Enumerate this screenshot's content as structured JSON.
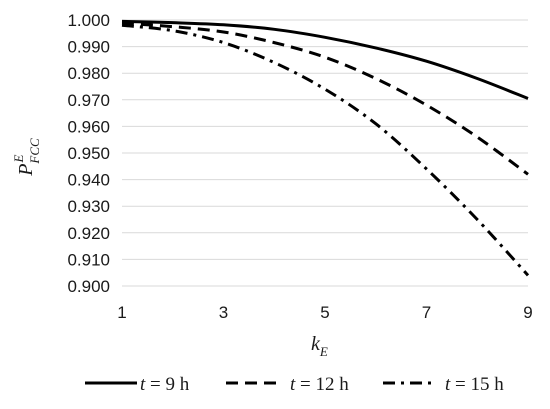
{
  "chart_data": {
    "type": "line",
    "title": "",
    "xlabel": {
      "main": "k",
      "sub": "E"
    },
    "ylabel": {
      "main": "P",
      "sup": "E",
      "sub": "FCC"
    },
    "xlim": [
      1,
      9
    ],
    "ylim": [
      0.9,
      1.0
    ],
    "x_ticks": [
      "1",
      "3",
      "5",
      "7",
      "9"
    ],
    "y_ticks": [
      "0.900",
      "0.910",
      "0.920",
      "0.930",
      "0.940",
      "0.950",
      "0.960",
      "0.970",
      "0.980",
      "0.990",
      "1.000"
    ],
    "grid": "horizontal",
    "legend_position": "bottom",
    "series": [
      {
        "name": "t = 9 h",
        "legend": {
          "var": "t",
          "rest": " = 9 h"
        },
        "dash": "solid",
        "x": [
          1,
          2,
          3,
          4,
          5,
          6,
          7,
          8,
          9
        ],
        "values": [
          0.9995,
          0.999,
          0.9982,
          0.9965,
          0.9935,
          0.9895,
          0.9845,
          0.978,
          0.9705
        ]
      },
      {
        "name": "t = 12 h",
        "legend": {
          "var": "t",
          "rest": " = 12 h"
        },
        "dash": "dash",
        "x": [
          1,
          2,
          3,
          4,
          5,
          6,
          7,
          8,
          9
        ],
        "values": [
          0.9988,
          0.9975,
          0.9955,
          0.9915,
          0.986,
          0.978,
          0.968,
          0.956,
          0.942
        ]
      },
      {
        "name": "t = 15 h",
        "legend": {
          "var": "t",
          "rest": " = 15 h"
        },
        "dash": "dashdot",
        "x": [
          1,
          2,
          3,
          4,
          5,
          6,
          7,
          8,
          9
        ],
        "values": [
          0.998,
          0.996,
          0.9915,
          0.984,
          0.974,
          0.961,
          0.944,
          0.925,
          0.904
        ]
      }
    ]
  }
}
